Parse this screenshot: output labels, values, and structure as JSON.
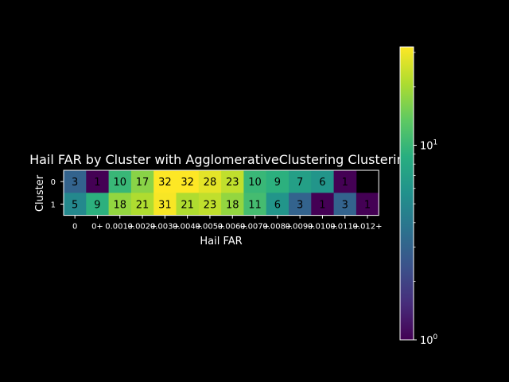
{
  "chart_data": {
    "type": "heatmap",
    "title": "Hail FAR by Cluster with AgglomerativeClustering Clustering",
    "xlabel": "Hail FAR",
    "ylabel": "Cluster",
    "x_categories": [
      "0",
      "0+",
      "0.001+",
      "0.002+",
      "0.003+",
      "0.004+",
      "0.005+",
      "0.006+",
      "0.007+",
      "0.008+",
      "0.009+",
      "0.010+",
      "0.011+",
      "0.012+"
    ],
    "y_categories": [
      "0",
      "1"
    ],
    "values": [
      [
        3,
        1,
        10,
        17,
        32,
        32,
        28,
        23,
        10,
        9,
        7,
        6,
        1,
        null
      ],
      [
        5,
        9,
        18,
        21,
        31,
        21,
        23,
        18,
        11,
        6,
        3,
        1,
        3,
        1
      ]
    ],
    "color_scale": "log",
    "colormap": "viridis",
    "colorbar_range": [
      1,
      32
    ],
    "colorbar_ticks": [
      {
        "value": 1,
        "label": "10^0"
      },
      {
        "value": 10,
        "label": "10^1"
      }
    ],
    "background": "#000000",
    "text_color": "#ffffff",
    "cell_text_color": "#000000"
  }
}
